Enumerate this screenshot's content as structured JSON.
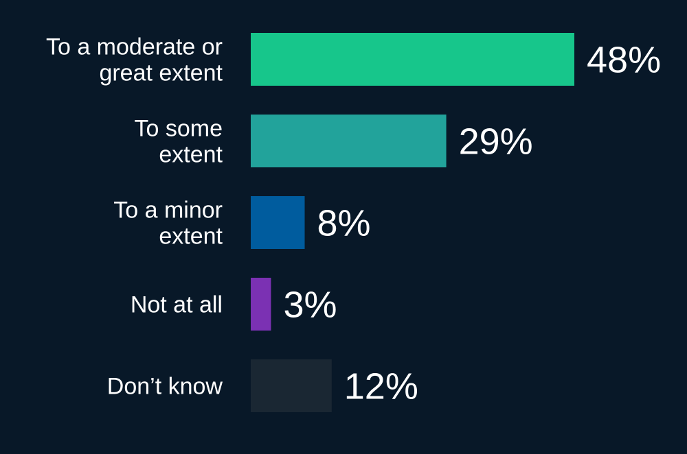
{
  "chart_data": {
    "type": "bar",
    "orientation": "horizontal",
    "categories": [
      [
        "To a moderate or",
        "great extent"
      ],
      [
        "To some",
        "extent"
      ],
      [
        "To a minor",
        "extent"
      ],
      [
        "Not at all"
      ],
      [
        "Don’t know"
      ]
    ],
    "values": [
      48,
      29,
      8,
      3,
      12
    ],
    "value_labels": [
      "48%",
      "29%",
      "8%",
      "3%",
      "12%"
    ],
    "colors": [
      "#17c68b",
      "#22a39b",
      "#005c9e",
      "#7b31b3",
      "#1a2733"
    ],
    "title": "",
    "xlabel": "",
    "ylabel": "",
    "xlim": [
      0,
      48
    ],
    "grid": false,
    "legend": "none"
  },
  "colors": {
    "background": "#081828",
    "text": "#ffffff"
  }
}
